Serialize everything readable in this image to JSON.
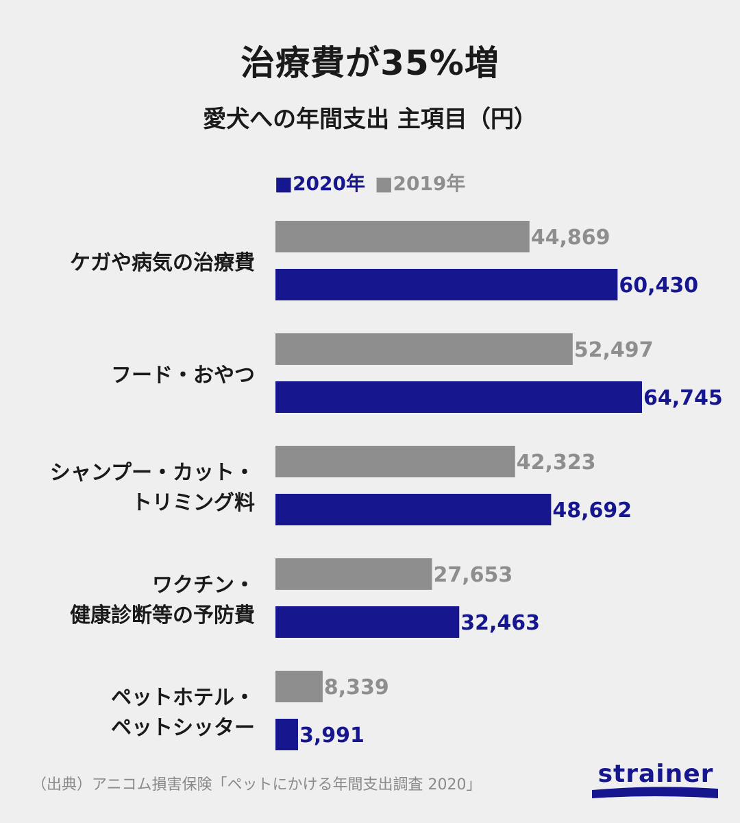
{
  "title": "治療費が35%増",
  "subtitle": "愛犬への年間支出 主項目（円）",
  "legend": {
    "items": [
      {
        "label": "■2020年",
        "color": "#16168f"
      },
      {
        "label": "■2019年",
        "color": "#8e8e8e"
      }
    ]
  },
  "source": "（出典）アニコム損害保険「ペットにかける年間支出調査 2020」",
  "logo": {
    "text": "strainer",
    "color": "#16168f"
  },
  "chart_data": {
    "type": "bar",
    "orientation": "horizontal",
    "categories": [
      [
        "ケガや病気の治療費"
      ],
      [
        "フード・おやつ"
      ],
      [
        "シャンプー・カット・",
        "トリミング料"
      ],
      [
        "ワクチン・",
        "健康診断等の予防費"
      ],
      [
        "ペットホテル・",
        "ペットシッター"
      ]
    ],
    "series": [
      {
        "name": "2019年",
        "values": [
          44869,
          52497,
          42323,
          27653,
          8339
        ],
        "labels": [
          "44,869",
          "52,497",
          "42,323",
          "27,653",
          "8,339"
        ],
        "color": "#8e8e8e"
      },
      {
        "name": "2020年",
        "values": [
          60430,
          64745,
          48692,
          32463,
          3991
        ],
        "labels": [
          "60,430",
          "64,745",
          "48,692",
          "32,463",
          "3,991"
        ],
        "color": "#16168f"
      }
    ],
    "grid": false,
    "legend_position": "top-center"
  }
}
